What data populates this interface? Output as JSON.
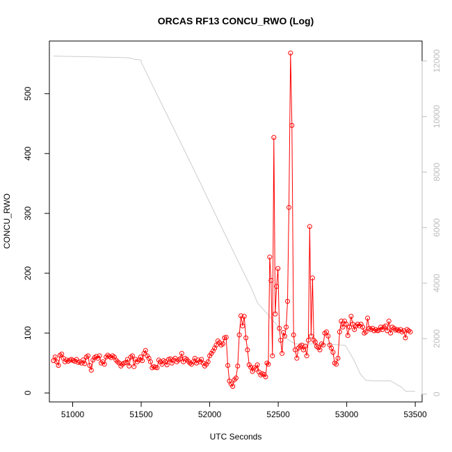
{
  "chart_data": {
    "type": "line",
    "title": "ORCAS RF13 CONCU_RWO (Log)",
    "xlabel": "UTC Seconds",
    "ylabel": "CONCU_RWO",
    "xlim": [
      50830,
      53550
    ],
    "ylim": [
      -15,
      588
    ],
    "y2lim": [
      -280,
      12720
    ],
    "x_ticks": [
      51000,
      51500,
      52000,
      52500,
      53000,
      53500
    ],
    "y_ticks": [
      0,
      100,
      200,
      300,
      400,
      500
    ],
    "y2_ticks": [
      0,
      2000,
      4000,
      6000,
      8000,
      10000,
      12000
    ],
    "grid": false,
    "series": [
      {
        "color": "#ff0000",
        "style": "line+circle-markers",
        "axis": "left",
        "points": [
          [
            50860,
            54
          ],
          [
            50872,
            60
          ],
          [
            50884,
            52
          ],
          [
            50896,
            46
          ],
          [
            50908,
            63
          ],
          [
            50920,
            65
          ],
          [
            50932,
            58
          ],
          [
            50944,
            52
          ],
          [
            50956,
            55
          ],
          [
            50968,
            53
          ],
          [
            50980,
            55
          ],
          [
            50992,
            56
          ],
          [
            51004,
            54
          ],
          [
            51016,
            53
          ],
          [
            51028,
            56
          ],
          [
            51040,
            51
          ],
          [
            51052,
            52
          ],
          [
            51064,
            50
          ],
          [
            51076,
            55
          ],
          [
            51088,
            49
          ],
          [
            51100,
            60
          ],
          [
            51112,
            62
          ],
          [
            51124,
            46
          ],
          [
            51136,
            38
          ],
          [
            51148,
            55
          ],
          [
            51160,
            59
          ],
          [
            51172,
            61
          ],
          [
            51184,
            58
          ],
          [
            51196,
            62
          ],
          [
            51208,
            50
          ],
          [
            51220,
            52
          ],
          [
            51232,
            48
          ],
          [
            51244,
            60
          ],
          [
            51256,
            63
          ],
          [
            51268,
            61
          ],
          [
            51280,
            59
          ],
          [
            51292,
            62
          ],
          [
            51304,
            60
          ],
          [
            51316,
            55
          ],
          [
            51328,
            52
          ],
          [
            51340,
            50
          ],
          [
            51352,
            45
          ],
          [
            51364,
            48
          ],
          [
            51376,
            50
          ],
          [
            51388,
            51
          ],
          [
            51400,
            56
          ],
          [
            51412,
            45
          ],
          [
            51424,
            60
          ],
          [
            51436,
            62
          ],
          [
            51448,
            44
          ],
          [
            51460,
            56
          ],
          [
            51472,
            52
          ],
          [
            51484,
            55
          ],
          [
            51496,
            60
          ],
          [
            51508,
            54
          ],
          [
            51520,
            66
          ],
          [
            51532,
            71
          ],
          [
            51544,
            62
          ],
          [
            51556,
            58
          ],
          [
            51568,
            52
          ],
          [
            51580,
            42
          ],
          [
            51592,
            44
          ],
          [
            51604,
            43
          ],
          [
            51616,
            42
          ],
          [
            51628,
            55
          ],
          [
            51640,
            52
          ],
          [
            51652,
            48
          ],
          [
            51664,
            54
          ],
          [
            51676,
            52
          ],
          [
            51688,
            47
          ],
          [
            51700,
            56
          ],
          [
            51712,
            57
          ],
          [
            51724,
            50
          ],
          [
            51736,
            55
          ],
          [
            51748,
            58
          ],
          [
            51760,
            52
          ],
          [
            51772,
            55
          ],
          [
            51784,
            57
          ],
          [
            51796,
            66
          ],
          [
            51808,
            52
          ],
          [
            51820,
            58
          ],
          [
            51832,
            56
          ],
          [
            51844,
            53
          ],
          [
            51856,
            50
          ],
          [
            51868,
            48
          ],
          [
            51880,
            52
          ],
          [
            51892,
            58
          ],
          [
            51904,
            50
          ],
          [
            51916,
            55
          ],
          [
            51928,
            52
          ],
          [
            51940,
            56
          ],
          [
            51952,
            50
          ],
          [
            51964,
            45
          ],
          [
            51976,
            48
          ],
          [
            51988,
            52
          ],
          [
            52000,
            62
          ],
          [
            52012,
            66
          ],
          [
            52024,
            70
          ],
          [
            52036,
            75
          ],
          [
            52048,
            80
          ],
          [
            52060,
            87
          ],
          [
            52072,
            84
          ],
          [
            52084,
            80
          ],
          [
            52096,
            82
          ],
          [
            52108,
            92
          ],
          [
            52120,
            93
          ],
          [
            52132,
            46
          ],
          [
            52144,
            20
          ],
          [
            52156,
            15
          ],
          [
            52168,
            11
          ],
          [
            52180,
            22
          ],
          [
            52192,
            25
          ],
          [
            52204,
            45
          ],
          [
            52216,
            97
          ],
          [
            52228,
            129
          ],
          [
            52240,
            112
          ],
          [
            52252,
            128
          ],
          [
            52264,
            92
          ],
          [
            52276,
            72
          ],
          [
            52288,
            47
          ],
          [
            52300,
            43
          ],
          [
            52312,
            36
          ],
          [
            52324,
            42
          ],
          [
            52336,
            40
          ],
          [
            52348,
            47
          ],
          [
            52360,
            35
          ],
          [
            52372,
            30
          ],
          [
            52384,
            32
          ],
          [
            52396,
            31
          ],
          [
            52408,
            27
          ],
          [
            52418,
            50
          ],
          [
            52428,
            48
          ],
          [
            52438,
            227
          ],
          [
            52448,
            188
          ],
          [
            52458,
            62
          ],
          [
            52468,
            427
          ],
          [
            52478,
            132
          ],
          [
            52488,
            178
          ],
          [
            52498,
            208
          ],
          [
            52508,
            108
          ],
          [
            52518,
            88
          ],
          [
            52528,
            66
          ],
          [
            52538,
            101
          ],
          [
            52548,
            95
          ],
          [
            52558,
            110
          ],
          [
            52568,
            153
          ],
          [
            52578,
            310
          ],
          [
            52590,
            568
          ],
          [
            52600,
            447
          ],
          [
            52612,
            97
          ],
          [
            52624,
            72
          ],
          [
            52636,
            58
          ],
          [
            52648,
            75
          ],
          [
            52660,
            78
          ],
          [
            52672,
            80
          ],
          [
            52684,
            72
          ],
          [
            52696,
            78
          ],
          [
            52708,
            62
          ],
          [
            52720,
            88
          ],
          [
            52730,
            278
          ],
          [
            52740,
            95
          ],
          [
            52750,
            192
          ],
          [
            52760,
            88
          ],
          [
            52770,
            85
          ],
          [
            52780,
            78
          ],
          [
            52792,
            76
          ],
          [
            52804,
            72
          ],
          [
            52816,
            82
          ],
          [
            52828,
            80
          ],
          [
            52840,
            100
          ],
          [
            52852,
            102
          ],
          [
            52864,
            95
          ],
          [
            52876,
            80
          ],
          [
            52888,
            75
          ],
          [
            52900,
            68
          ],
          [
            52912,
            50
          ],
          [
            52924,
            48
          ],
          [
            52936,
            58
          ],
          [
            52948,
            102
          ],
          [
            52960,
            120
          ],
          [
            52972,
            110
          ],
          [
            52984,
            120
          ],
          [
            52996,
            115
          ],
          [
            53008,
            96
          ],
          [
            53020,
            110
          ],
          [
            53032,
            128
          ],
          [
            53044,
            115
          ],
          [
            53056,
            106
          ],
          [
            53068,
            112
          ],
          [
            53080,
            115
          ],
          [
            53092,
            112
          ],
          [
            53104,
            115
          ],
          [
            53116,
            110
          ],
          [
            53128,
            100
          ],
          [
            53140,
            102
          ],
          [
            53152,
            125
          ],
          [
            53164,
            108
          ],
          [
            53176,
            106
          ],
          [
            53188,
            108
          ],
          [
            53200,
            104
          ],
          [
            53212,
            106
          ],
          [
            53224,
            104
          ],
          [
            53236,
            105
          ],
          [
            53248,
            110
          ],
          [
            53260,
            106
          ],
          [
            53272,
            110
          ],
          [
            53284,
            112
          ],
          [
            53296,
            104
          ],
          [
            53308,
            120
          ],
          [
            53320,
            100
          ],
          [
            53332,
            110
          ],
          [
            53344,
            108
          ],
          [
            53356,
            105
          ],
          [
            53368,
            106
          ],
          [
            53380,
            104
          ],
          [
            53392,
            106
          ],
          [
            53404,
            102
          ],
          [
            53416,
            104
          ],
          [
            53428,
            92
          ],
          [
            53440,
            106
          ],
          [
            53452,
            104
          ],
          [
            53464,
            102
          ]
        ]
      },
      {
        "color": "#cccccc",
        "style": "line",
        "axis": "right",
        "points": [
          [
            50860,
            12180
          ],
          [
            50950,
            12170
          ],
          [
            51050,
            12160
          ],
          [
            51150,
            12150
          ],
          [
            51250,
            12140
          ],
          [
            51350,
            12130
          ],
          [
            51420,
            12110
          ],
          [
            51450,
            12060
          ],
          [
            51480,
            12050
          ],
          [
            51500,
            12030
          ],
          [
            51500,
            11960
          ],
          [
            51600,
            10950
          ],
          [
            51700,
            9950
          ],
          [
            51800,
            8940
          ],
          [
            51900,
            7930
          ],
          [
            52000,
            6900
          ],
          [
            52100,
            5880
          ],
          [
            52200,
            4860
          ],
          [
            52300,
            3860
          ],
          [
            52350,
            3280
          ],
          [
            52430,
            2840
          ],
          [
            52500,
            2440
          ],
          [
            52560,
            2010
          ],
          [
            52620,
            1820
          ],
          [
            52700,
            1810
          ],
          [
            52800,
            1810
          ],
          [
            52900,
            1790
          ],
          [
            52990,
            1760
          ],
          [
            53050,
            1250
          ],
          [
            53100,
            720
          ],
          [
            53140,
            500
          ],
          [
            53200,
            480
          ],
          [
            53320,
            480
          ],
          [
            53400,
            250
          ],
          [
            53430,
            100
          ],
          [
            53500,
            100
          ]
        ]
      }
    ]
  }
}
